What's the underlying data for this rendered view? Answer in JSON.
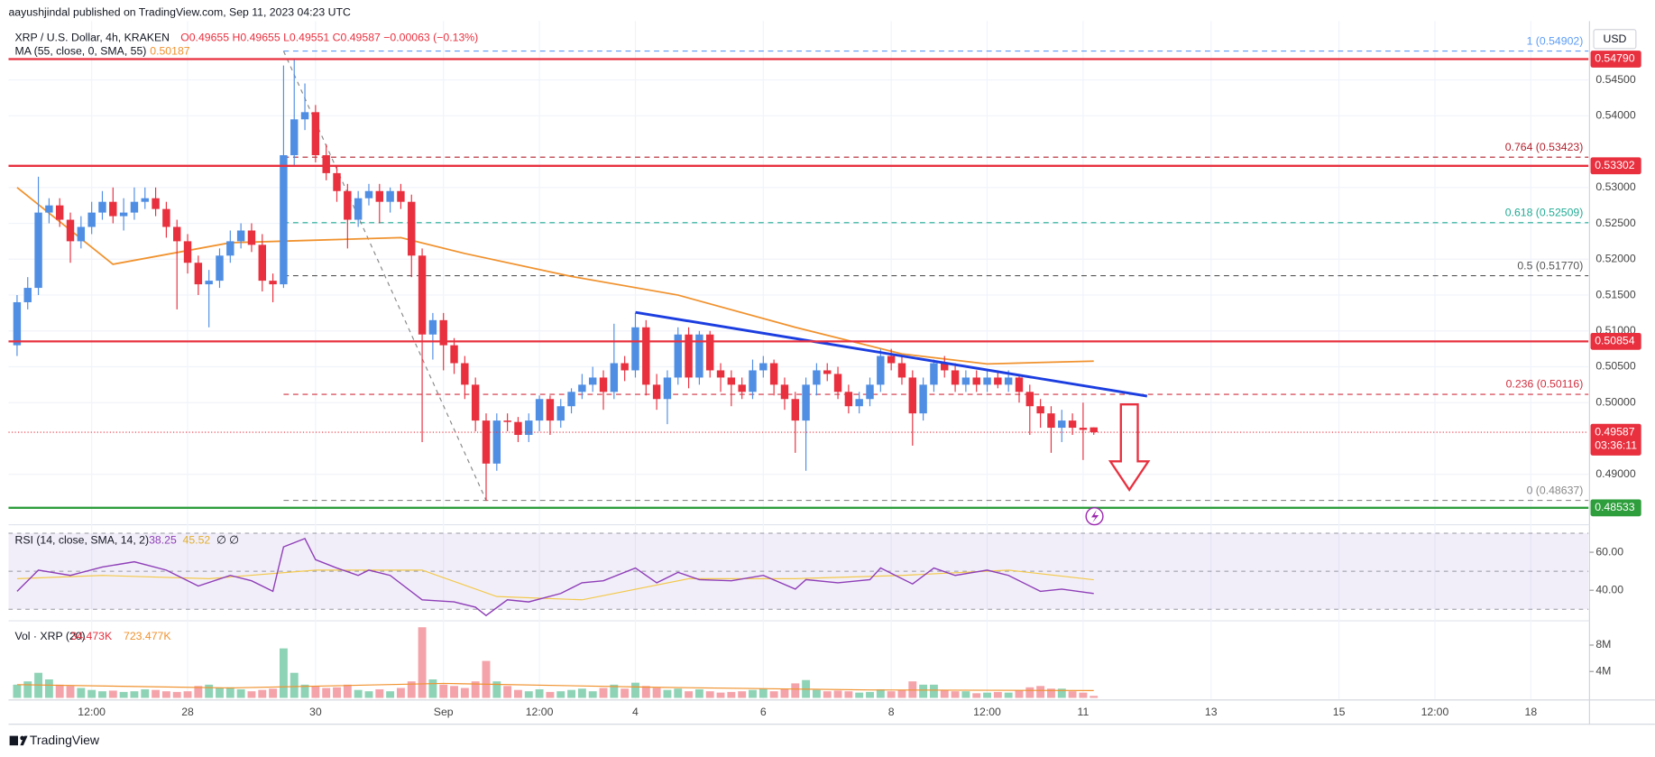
{
  "chart_data": {
    "type": "candlestick",
    "title": "aayushjindal published on TradingView.com, Sep 11, 2023 04:23 UTC",
    "symbol": "XRP / U.S. Dollar, 4h, KRAKEN",
    "ohlc_legend": "O0.49655 H0.49655 L0.49551 C0.49587 −0.00063 (−0.13%)",
    "currency": "USD",
    "up_color": "#4f8ee3",
    "down_color": "#e8303f",
    "candles": [
      [
        0.508,
        0.515,
        0.5065,
        0.514
      ],
      [
        0.514,
        0.5175,
        0.513,
        0.516
      ],
      [
        0.516,
        0.5315,
        0.515,
        0.5265
      ],
      [
        0.5265,
        0.5285,
        0.525,
        0.5275
      ],
      [
        0.5275,
        0.5285,
        0.5245,
        0.5255
      ],
      [
        0.5255,
        0.5265,
        0.5195,
        0.5225
      ],
      [
        0.5225,
        0.526,
        0.5215,
        0.5245
      ],
      [
        0.5245,
        0.528,
        0.5235,
        0.5265
      ],
      [
        0.5265,
        0.5295,
        0.5255,
        0.528
      ],
      [
        0.528,
        0.53,
        0.525,
        0.526
      ],
      [
        0.526,
        0.5285,
        0.524,
        0.5265
      ],
      [
        0.5265,
        0.53,
        0.5255,
        0.528
      ],
      [
        0.528,
        0.53,
        0.527,
        0.5285
      ],
      [
        0.5285,
        0.53,
        0.526,
        0.527
      ],
      [
        0.527,
        0.528,
        0.523,
        0.5245
      ],
      [
        0.5245,
        0.5255,
        0.513,
        0.5225
      ],
      [
        0.5225,
        0.5235,
        0.518,
        0.5195
      ],
      [
        0.5195,
        0.5205,
        0.515,
        0.5165
      ],
      [
        0.5165,
        0.5185,
        0.5105,
        0.517
      ],
      [
        0.517,
        0.5215,
        0.516,
        0.5205
      ],
      [
        0.5205,
        0.524,
        0.5195,
        0.5225
      ],
      [
        0.5225,
        0.525,
        0.5215,
        0.524
      ],
      [
        0.524,
        0.525,
        0.521,
        0.522
      ],
      [
        0.522,
        0.5235,
        0.5155,
        0.517
      ],
      [
        0.517,
        0.518,
        0.514,
        0.5165
      ],
      [
        0.5165,
        0.547,
        0.516,
        0.5345
      ],
      [
        0.5345,
        0.5478,
        0.533,
        0.5395
      ],
      [
        0.5395,
        0.5445,
        0.538,
        0.5405
      ],
      [
        0.5405,
        0.5415,
        0.5335,
        0.5345
      ],
      [
        0.5345,
        0.536,
        0.531,
        0.532
      ],
      [
        0.532,
        0.533,
        0.528,
        0.5295
      ],
      [
        0.5295,
        0.5305,
        0.5215,
        0.5255
      ],
      [
        0.5255,
        0.5295,
        0.5245,
        0.5285
      ],
      [
        0.5285,
        0.5305,
        0.5275,
        0.5295
      ],
      [
        0.5295,
        0.5305,
        0.525,
        0.528
      ],
      [
        0.528,
        0.53,
        0.5265,
        0.5295
      ],
      [
        0.5295,
        0.5305,
        0.527,
        0.528
      ],
      [
        0.528,
        0.529,
        0.5175,
        0.5205
      ],
      [
        0.5205,
        0.5215,
        0.4945,
        0.5095
      ],
      [
        0.5095,
        0.5125,
        0.506,
        0.5115
      ],
      [
        0.5115,
        0.5125,
        0.5045,
        0.508
      ],
      [
        0.508,
        0.509,
        0.504,
        0.5055
      ],
      [
        0.5055,
        0.5065,
        0.5005,
        0.5025
      ],
      [
        0.5025,
        0.5035,
        0.496,
        0.4975
      ],
      [
        0.4975,
        0.4985,
        0.4863,
        0.4915
      ],
      [
        0.4915,
        0.4985,
        0.4905,
        0.4975
      ],
      [
        0.4975,
        0.4985,
        0.496,
        0.4973
      ],
      [
        0.4973,
        0.498,
        0.4945,
        0.4955
      ],
      [
        0.4955,
        0.4985,
        0.4945,
        0.4975
      ],
      [
        0.4975,
        0.501,
        0.496,
        0.5005
      ],
      [
        0.5005,
        0.501,
        0.4955,
        0.4975
      ],
      [
        0.4975,
        0.5005,
        0.4965,
        0.4995
      ],
      [
        0.4995,
        0.502,
        0.4985,
        0.5015
      ],
      [
        0.5015,
        0.504,
        0.5005,
        0.5025
      ],
      [
        0.5025,
        0.505,
        0.5015,
        0.5035
      ],
      [
        0.5035,
        0.5045,
        0.499,
        0.5015
      ],
      [
        0.5015,
        0.511,
        0.5005,
        0.5055
      ],
      [
        0.5055,
        0.5065,
        0.503,
        0.5045
      ],
      [
        0.5045,
        0.5125,
        0.5035,
        0.5105
      ],
      [
        0.5105,
        0.5115,
        0.501,
        0.5025
      ],
      [
        0.5025,
        0.504,
        0.499,
        0.5005
      ],
      [
        0.5005,
        0.5045,
        0.497,
        0.5035
      ],
      [
        0.5035,
        0.5105,
        0.5025,
        0.5095
      ],
      [
        0.5095,
        0.5105,
        0.502,
        0.5035
      ],
      [
        0.5035,
        0.51,
        0.5025,
        0.5095
      ],
      [
        0.5095,
        0.51,
        0.5035,
        0.5045
      ],
      [
        0.5045,
        0.5055,
        0.5015,
        0.5035
      ],
      [
        0.5035,
        0.5045,
        0.4995,
        0.5025
      ],
      [
        0.5025,
        0.5035,
        0.5005,
        0.5015
      ],
      [
        0.5015,
        0.506,
        0.5005,
        0.5045
      ],
      [
        0.5045,
        0.5065,
        0.5035,
        0.5055
      ],
      [
        0.5055,
        0.506,
        0.501,
        0.5025
      ],
      [
        0.5025,
        0.5035,
        0.499,
        0.5005
      ],
      [
        0.5005,
        0.5015,
        0.493,
        0.4975
      ],
      [
        0.4975,
        0.5035,
        0.4905,
        0.5025
      ],
      [
        0.5025,
        0.5055,
        0.501,
        0.5045
      ],
      [
        0.5045,
        0.5055,
        0.503,
        0.504
      ],
      [
        0.504,
        0.505,
        0.5005,
        0.5015
      ],
      [
        0.5015,
        0.5025,
        0.4985,
        0.4995
      ],
      [
        0.4995,
        0.5015,
        0.4985,
        0.5005
      ],
      [
        0.5005,
        0.5035,
        0.4995,
        0.5025
      ],
      [
        0.5025,
        0.5075,
        0.5015,
        0.5065
      ],
      [
        0.5065,
        0.5075,
        0.5045,
        0.5055
      ],
      [
        0.5055,
        0.5065,
        0.5025,
        0.5035
      ],
      [
        0.5035,
        0.5045,
        0.494,
        0.4985
      ],
      [
        0.4985,
        0.5035,
        0.4975,
        0.5025
      ],
      [
        0.5025,
        0.506,
        0.5015,
        0.5055
      ],
      [
        0.5055,
        0.5065,
        0.5035,
        0.5045
      ],
      [
        0.5045,
        0.5055,
        0.5015,
        0.5025
      ],
      [
        0.5025,
        0.5045,
        0.5015,
        0.5035
      ],
      [
        0.5035,
        0.5045,
        0.5015,
        0.5025
      ],
      [
        0.5025,
        0.5045,
        0.5015,
        0.5035
      ],
      [
        0.5035,
        0.5045,
        0.502,
        0.5025
      ],
      [
        0.5025,
        0.5045,
        0.5015,
        0.5035
      ],
      [
        0.5035,
        0.504,
        0.5,
        0.5015
      ],
      [
        0.5015,
        0.5025,
        0.4955,
        0.4995
      ],
      [
        0.4995,
        0.5005,
        0.4965,
        0.4985
      ],
      [
        0.4985,
        0.4995,
        0.493,
        0.4965
      ],
      [
        0.4965,
        0.499,
        0.4945,
        0.4975
      ],
      [
        0.4975,
        0.4985,
        0.4955,
        0.4965
      ],
      [
        0.4965,
        0.5,
        0.492,
        0.4962
      ],
      [
        0.49655,
        0.49655,
        0.49551,
        0.49587
      ]
    ],
    "xlim": [
      -0.8,
      147.4
    ],
    "xticks": [
      {
        "value": 7,
        "label": "12:00"
      },
      {
        "value": 16,
        "label": "28"
      },
      {
        "value": 28,
        "label": "30"
      },
      {
        "value": 40,
        "label": "Sep"
      },
      {
        "value": 49,
        "label": "12:00"
      },
      {
        "value": 58,
        "label": "4"
      },
      {
        "value": 70,
        "label": "6"
      },
      {
        "value": 82,
        "label": "8"
      },
      {
        "value": 91,
        "label": "12:00"
      },
      {
        "value": 100,
        "label": "11"
      },
      {
        "value": 112,
        "label": "13"
      },
      {
        "value": 124,
        "label": "15"
      },
      {
        "value": 133,
        "label": "12:00"
      },
      {
        "value": 142,
        "label": "18"
      }
    ],
    "ylim": [
      0.48327,
      0.55614
    ],
    "yticks": [
      {
        "value": 0.545,
        "label": "0.54500"
      },
      {
        "value": 0.54,
        "label": "0.54000"
      },
      {
        "value": 0.53,
        "label": "0.53000"
      },
      {
        "value": 0.525,
        "label": "0.52500"
      },
      {
        "value": 0.52,
        "label": "0.52000"
      },
      {
        "value": 0.515,
        "label": "0.51500"
      },
      {
        "value": 0.51,
        "label": "0.51000"
      },
      {
        "value": 0.505,
        "label": "0.50500"
      },
      {
        "value": 0.5,
        "label": "0.50000"
      },
      {
        "value": 0.49,
        "label": "0.49000"
      }
    ],
    "grid": true,
    "levels": [
      {
        "value": 0.5479,
        "label": "0.54790",
        "color": "#e8303f"
      },
      {
        "value": 0.53302,
        "label": "0.53302",
        "color": "#e8303f"
      },
      {
        "value": 0.50854,
        "label": "0.50854",
        "color": "#e8303f"
      },
      {
        "value": 0.48533,
        "label": "0.48533",
        "color": "#2e9e3c"
      }
    ],
    "current": {
      "value": 0.49587,
      "label": "0.49587",
      "countdown": "03:36:11",
      "color": "#e8303f"
    },
    "fib": {
      "x": [
        25,
        44
      ],
      "color": "#888888",
      "levels": [
        {
          "value": 0.54902,
          "label": "1 (0.54902)",
          "color": "#5b9cf6"
        },
        {
          "value": 0.53423,
          "label": "0.764 (0.53423)",
          "color": "#b2222e"
        },
        {
          "value": 0.52509,
          "label": "0.618 (0.52509)",
          "color": "#22ab94"
        },
        {
          "value": 0.5177,
          "label": "0.5 (0.51770)",
          "color": "#555555"
        },
        {
          "value": 0.50116,
          "label": "0.236 (0.50116)",
          "color": "#d03040"
        },
        {
          "value": 0.48637,
          "label": "0 (0.48637)",
          "color": "#888888"
        }
      ]
    },
    "trendline": {
      "color": "#1c3ee0",
      "x": [
        58,
        106
      ],
      "values": [
        0.5126,
        0.5009
      ]
    },
    "ma": {
      "name": "MA (55, close, 0, SMA, 55)",
      "legend_value": "0.50187",
      "color": "#f0922e",
      "x": [
        0,
        9,
        20,
        27,
        36,
        42,
        52,
        62,
        73,
        83,
        91,
        101
      ],
      "values": [
        0.53,
        0.5193,
        0.5223,
        0.5226,
        0.523,
        0.5208,
        0.5176,
        0.515,
        0.5105,
        0.5068,
        0.5054,
        0.5058
      ]
    },
    "rsi": {
      "name": "RSI (14, close, SMA, 14, 2)",
      "legend_values": [
        "38.25",
        "45.52",
        "∅ ∅"
      ],
      "color": "#8e3fb8",
      "band_color": "#7e57c2",
      "ylim": [
        25.6,
        72.8
      ],
      "yticks": [
        {
          "value": 60,
          "label": "60.00"
        },
        {
          "value": 40,
          "label": "40.00"
        }
      ],
      "levels": [
        30,
        50,
        70
      ],
      "x": [
        0,
        2,
        5,
        8,
        11,
        14,
        17,
        20,
        22,
        24,
        25,
        27,
        28,
        30,
        32,
        33,
        35,
        38,
        41,
        43,
        44,
        46,
        48,
        51,
        53,
        55,
        58,
        60,
        62,
        64,
        67,
        70,
        73,
        74,
        77,
        80,
        81,
        84,
        86,
        88,
        91,
        93,
        96,
        98,
        101
      ],
      "values": [
        39.4,
        50.6,
        47.8,
        52.2,
        55,
        50.6,
        42.2,
        47.8,
        45,
        39.4,
        62.8,
        67.2,
        56.1,
        51.7,
        47.8,
        50.6,
        47.8,
        35,
        33.9,
        31.1,
        26.7,
        35,
        33.9,
        38.3,
        43.9,
        45,
        51.7,
        43.9,
        49.4,
        45.6,
        45,
        47.8,
        40.6,
        45.6,
        43.9,
        45.6,
        51.7,
        43.3,
        51.7,
        47.8,
        50.6,
        47.8,
        39.4,
        40.6,
        38.25
      ],
      "signal": {
        "color": "#f2c94c",
        "x": [
          0,
          8,
          18,
          28,
          38,
          45,
          53,
          63,
          73,
          83,
          93,
          101
        ],
        "values": [
          46.1,
          47.8,
          46.1,
          50.6,
          50.6,
          36.7,
          35,
          46.1,
          46.1,
          47.8,
          50.6,
          45.52
        ]
      }
    },
    "volume": {
      "name": "Vol · XRP (20)",
      "legend_values": [
        "34.473K",
        "723.477K"
      ],
      "up_color": "#8fd3b6",
      "down_color": "#f4a3aa",
      "ylim": [
        0,
        11.36
      ],
      "yticks": [
        {
          "value": 4,
          "label": "4M"
        },
        {
          "value": 8,
          "label": "8M"
        }
      ],
      "values": [
        2.0,
        2.5,
        3.8,
        2.8,
        2.0,
        1.8,
        1.5,
        1.2,
        1.0,
        1.1,
        0.9,
        1.0,
        1.3,
        1.2,
        1.0,
        0.9,
        1.0,
        1.8,
        2.0,
        1.5,
        1.6,
        1.3,
        1.0,
        1.2,
        1.4,
        7.5,
        3.8,
        2.0,
        1.8,
        1.5,
        1.6,
        2.0,
        1.2,
        1.0,
        1.3,
        1.0,
        1.5,
        2.5,
        10.7,
        2.8,
        2.0,
        1.8,
        1.5,
        2.5,
        5.6,
        2.5,
        1.8,
        1.2,
        1.0,
        1.3,
        0.9,
        1.0,
        1.2,
        1.4,
        1.0,
        1.5,
        2.0,
        1.4,
        2.3,
        1.8,
        1.5,
        1.2,
        1.4,
        1.0,
        1.3,
        1.0,
        0.8,
        0.9,
        1.0,
        1.2,
        1.4,
        1.0,
        1.3,
        2.2,
        2.7,
        1.2,
        1.0,
        1.1,
        1.0,
        0.8,
        0.9,
        1.3,
        1.0,
        1.2,
        2.5,
        2.0,
        2.0,
        1.2,
        1.0,
        1.0,
        0.7,
        0.8,
        0.9,
        0.8,
        1.1,
        1.6,
        1.8,
        1.4,
        1.4,
        1.0,
        0.8,
        0.3
      ],
      "ma": {
        "color": "#f0922e",
        "x": [
          0,
          20,
          40,
          60,
          80,
          101
        ],
        "values": [
          2.0,
          1.5,
          2.2,
          1.6,
          1.2,
          1.1
        ]
      }
    },
    "footer": "TradingView"
  }
}
